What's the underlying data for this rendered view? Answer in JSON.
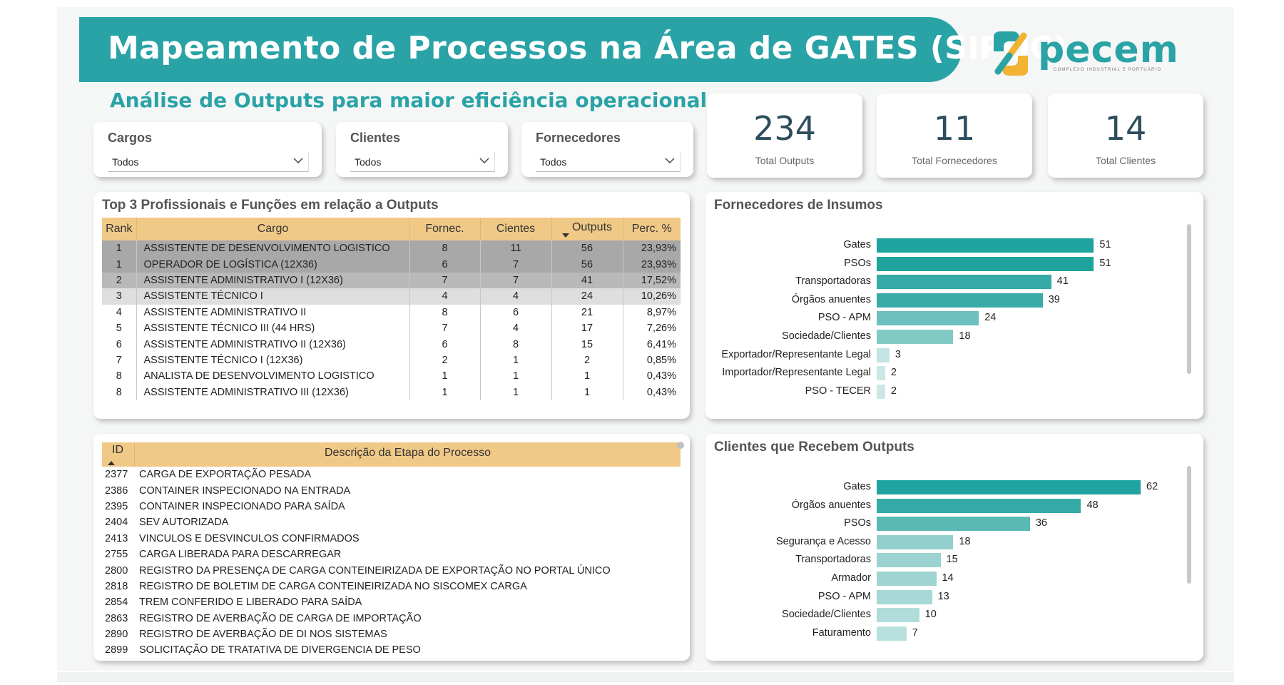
{
  "header": {
    "title": "Mapeamento de Processos na Área de GATES (SIPOC)",
    "subtitle": "Análise de Outputs para maior eficiência operacional",
    "logo_word": "pecem",
    "logo_tagline": "COMPLEXO INDUSTRIAL E PORTUÁRIO",
    "accent_color": "#2aa3a6"
  },
  "filters": [
    {
      "label": "Cargos",
      "value": "Todos"
    },
    {
      "label": "Clientes",
      "value": "Todos"
    },
    {
      "label": "Fornecedores",
      "value": "Todos"
    }
  ],
  "kpis": [
    {
      "value": "234",
      "label": "Total Outputs"
    },
    {
      "value": "11",
      "label": "Total Fornecedores"
    },
    {
      "value": "14",
      "label": "Total Clientes"
    }
  ],
  "top3": {
    "title": "Top 3 Profissionais e Funções em relação a Outputs",
    "columns": [
      "Rank",
      "Cargo",
      "Fornec.",
      "Cientes",
      "Outputs",
      "Perc. %"
    ],
    "rows": [
      [
        "1",
        "ASSISTENTE DE DESENVOLVIMENTO LOGISTICO",
        "8",
        "11",
        "56",
        "23,93%"
      ],
      [
        "1",
        "OPERADOR DE LOGÍSTICA (12X36)",
        "6",
        "7",
        "56",
        "23,93%"
      ],
      [
        "2",
        "ASSISTENTE ADMINISTRATIVO I (12X36)",
        "7",
        "7",
        "41",
        "17,52%"
      ],
      [
        "3",
        "ASSISTENTE TÉCNICO I",
        "4",
        "4",
        "24",
        "10,26%"
      ],
      [
        "4",
        "ASSISTENTE ADMINISTRATIVO II",
        "8",
        "6",
        "21",
        "8,97%"
      ],
      [
        "5",
        "ASSISTENTE TÉCNICO III (44 HRS)",
        "7",
        "4",
        "17",
        "7,26%"
      ],
      [
        "6",
        "ASSISTENTE ADMINISTRATIVO II (12X36)",
        "6",
        "8",
        "15",
        "6,41%"
      ],
      [
        "7",
        "ASSISTENTE TÉCNICO I (12X36)",
        "2",
        "1",
        "2",
        "0,85%"
      ],
      [
        "8",
        "ANALISTA DE DESENVOLVIMENTO LOGISTICO",
        "1",
        "1",
        "1",
        "0,43%"
      ],
      [
        "8",
        "ASSISTENTE ADMINISTRATIVO III (12X36)",
        "1",
        "1",
        "1",
        "0,43%"
      ]
    ]
  },
  "process_table": {
    "columns": [
      "ID",
      "Descrição da Etapa do Processo"
    ],
    "rows": [
      [
        "2377",
        "CARGA DE EXPORTAÇÃO PESADA"
      ],
      [
        "2386",
        "CONTAINER INSPECIONADO NA ENTRADA"
      ],
      [
        "2395",
        "CONTAINER INSPECIONADO PARA SAÍDA"
      ],
      [
        "2404",
        "SEV AUTORIZADA"
      ],
      [
        "2413",
        "VINCULOS E DESVINCULOS CONFIRMADOS"
      ],
      [
        "2755",
        "CARGA LIBERADA PARA DESCARREGAR"
      ],
      [
        "2800",
        "REGISTRO DA PRESENÇA DE CARGA CONTEINEIRIZADA DE EXPORTAÇÃO NO PORTAL ÚNICO"
      ],
      [
        "2818",
        "REGISTRO DE BOLETIM DE CARGA CONTEINEIRIZADA NO SISCOMEX CARGA"
      ],
      [
        "2854",
        "TREM CONFERIDO E LIBERADO PARA SAÍDA"
      ],
      [
        "2863",
        "REGISTRO DE AVERBAÇÃO DE CARGA DE IMPORTAÇÃO"
      ],
      [
        "2890",
        "REGISTRO DE AVERBAÇÃO DE DI NOS SISTEMAS"
      ],
      [
        "2899",
        "SOLICITAÇÃO DE TRATATIVA DE DIVERGENCIA DE PESO"
      ]
    ]
  },
  "chart_data": [
    {
      "type": "bar",
      "orientation": "horizontal",
      "title": "Fornecedores de Insumos",
      "categories": [
        "Gates",
        "PSOs",
        "Transportadoras",
        "Órgãos anuentes",
        "PSO - APM",
        "Sociedade/Clientes",
        "Exportador/Representante Legal",
        "Importador/Representante Legal",
        "PSO - TECER"
      ],
      "values": [
        51,
        51,
        41,
        39,
        24,
        18,
        3,
        2,
        2
      ],
      "colors": [
        "#1ea39e",
        "#1ea39e",
        "#35aaa6",
        "#3aaca8",
        "#6dc0bd",
        "#82c9c6",
        "#c2e4e2",
        "#cbe8e6",
        "#cbe8e6"
      ],
      "xlim": [
        0,
        62
      ]
    },
    {
      "type": "bar",
      "orientation": "horizontal",
      "title": "Clientes que Recebem Outputs",
      "categories": [
        "Gates",
        "Órgãos anuentes",
        "PSOs",
        "Segurança e Acesso",
        "Transportadoras",
        "Armador",
        "PSO - APM",
        "Sociedade/Clientes",
        "Faturamento"
      ],
      "values": [
        62,
        48,
        36,
        18,
        15,
        14,
        13,
        10,
        7
      ],
      "colors": [
        "#1ea39e",
        "#35aaa6",
        "#5bb9b5",
        "#93d0cd",
        "#9cd3d0",
        "#a0d5d2",
        "#a6d8d5",
        "#b0dcda",
        "#b8e0de"
      ],
      "xlim": [
        0,
        62
      ]
    }
  ]
}
